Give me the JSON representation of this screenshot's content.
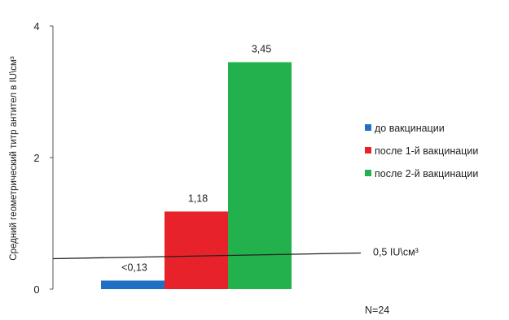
{
  "chart_data": {
    "type": "bar",
    "ylabel": "Средний геометрический титр антител в IU\\см³",
    "ylim": [
      0,
      4
    ],
    "yticks": [
      {
        "value": 0,
        "label": "0"
      },
      {
        "value": 2,
        "label": "2"
      },
      {
        "value": 4,
        "label": "4"
      }
    ],
    "grid": false,
    "legend_position": "right",
    "series": [
      {
        "name": "до вакцинации",
        "value": 0.13,
        "label": "<0,13",
        "color": "#1f6fc5"
      },
      {
        "name": "после 1-й вакцинации",
        "value": 1.18,
        "label": "1,18",
        "color": "#e8222a"
      },
      {
        "name": "после 2-й вакцинации",
        "value": 3.45,
        "label": "3,45",
        "color": "#22b14c"
      }
    ],
    "reference_line": {
      "value": 0.5,
      "label": "0,5 IU\\см³"
    },
    "note": "N=24"
  }
}
